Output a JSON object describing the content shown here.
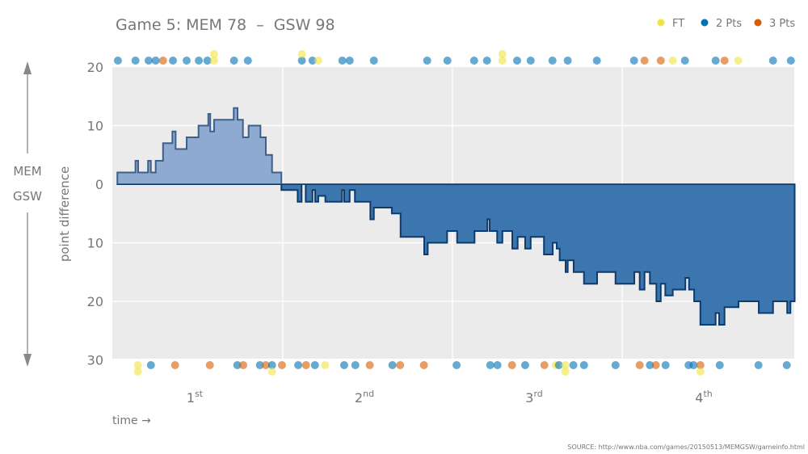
{
  "chart_data": {
    "type": "area",
    "title": "Game 5: MEM 78  –  GSW 98",
    "xlabel": "time →",
    "ylabel": "point difference",
    "team_up": "MEM",
    "team_down": "GSW",
    "y_ticks": [
      {
        "value": 20,
        "label": "20"
      },
      {
        "value": 10,
        "label": "10"
      },
      {
        "value": 0,
        "label": "0"
      },
      {
        "value": -10,
        "label": "10"
      },
      {
        "value": -20,
        "label": "20"
      },
      {
        "value": -30,
        "label": "30"
      }
    ],
    "ylim": [
      -30,
      20
    ],
    "xlim_minutes": [
      0,
      48.2
    ],
    "quarters": [
      {
        "num": "1",
        "suffix": "st",
        "mid": 6
      },
      {
        "num": "2",
        "suffix": "nd",
        "mid": 18
      },
      {
        "num": "3",
        "suffix": "rd",
        "mid": 30
      },
      {
        "num": "4",
        "suffix": "th",
        "mid": 42
      }
    ],
    "grid": true,
    "legend_position": "top-right",
    "legend": [
      {
        "key": "FT",
        "label": "FT",
        "color": "#f0e442"
      },
      {
        "key": "2",
        "label": "2 Pts",
        "color": "#0072b2"
      },
      {
        "key": "3",
        "label": "3 Pts",
        "color": "#d55e00"
      }
    ],
    "colors": {
      "mem_fill": "#8eaad0",
      "mem_stroke": "#3d5f8a",
      "gsw_fill": "#3b76ae",
      "gsw_stroke": "#0d3b6e",
      "plot_bg": "#ebebeb"
    },
    "margin_steps": [
      [
        0.3,
        2
      ],
      [
        1.58,
        4
      ],
      [
        1.77,
        2
      ],
      [
        2.47,
        4
      ],
      [
        2.67,
        2
      ],
      [
        3.01,
        4
      ],
      [
        3.53,
        7
      ],
      [
        4.19,
        9
      ],
      [
        4.42,
        6
      ],
      [
        5.2,
        8
      ],
      [
        6.04,
        10
      ],
      [
        6.73,
        12
      ],
      [
        6.87,
        9
      ],
      [
        7.14,
        11
      ],
      [
        8.53,
        13
      ],
      [
        8.8,
        11
      ],
      [
        9.18,
        8
      ],
      [
        9.58,
        10
      ],
      [
        10.42,
        8
      ],
      [
        10.8,
        5
      ],
      [
        11.24,
        2
      ],
      [
        11.9,
        -1
      ],
      [
        13.05,
        -3
      ],
      [
        13.33,
        0
      ],
      [
        13.62,
        -3
      ],
      [
        14.1,
        -1
      ],
      [
        14.29,
        -3
      ],
      [
        14.51,
        -2
      ],
      [
        15.01,
        -3
      ],
      [
        16.19,
        -1
      ],
      [
        16.34,
        -3
      ],
      [
        16.73,
        -1
      ],
      [
        17.1,
        -3
      ],
      [
        18.19,
        -6
      ],
      [
        18.44,
        -4
      ],
      [
        19.71,
        -5
      ],
      [
        20.33,
        -9
      ],
      [
        22.0,
        -12
      ],
      [
        22.25,
        -10
      ],
      [
        23.62,
        -8
      ],
      [
        24.33,
        -10
      ],
      [
        25.56,
        -8
      ],
      [
        26.47,
        -6
      ],
      [
        26.63,
        -8
      ],
      [
        27.16,
        -10
      ],
      [
        27.53,
        -8
      ],
      [
        28.23,
        -11
      ],
      [
        28.61,
        -9
      ],
      [
        29.14,
        -11
      ],
      [
        29.53,
        -9
      ],
      [
        30.47,
        -12
      ],
      [
        31.09,
        -10
      ],
      [
        31.37,
        -11
      ],
      [
        31.58,
        -13
      ],
      [
        32.0,
        -15
      ],
      [
        32.15,
        -13
      ],
      [
        32.57,
        -15
      ],
      [
        33.3,
        -17
      ],
      [
        34.23,
        -15
      ],
      [
        35.53,
        -17
      ],
      [
        36.86,
        -15
      ],
      [
        37.24,
        -18
      ],
      [
        37.58,
        -15
      ],
      [
        37.96,
        -17
      ],
      [
        38.42,
        -20
      ],
      [
        38.73,
        -17
      ],
      [
        39.05,
        -19
      ],
      [
        39.58,
        -18
      ],
      [
        40.47,
        -16
      ],
      [
        40.73,
        -18
      ],
      [
        41.09,
        -20
      ],
      [
        41.53,
        -24
      ],
      [
        42.61,
        -22
      ],
      [
        42.86,
        -24
      ],
      [
        43.24,
        -21
      ],
      [
        44.23,
        -20
      ],
      [
        45.66,
        -22
      ],
      [
        46.67,
        -20
      ],
      [
        47.67,
        -22
      ],
      [
        47.9,
        -20
      ],
      [
        48.2,
        -20
      ]
    ],
    "mem_scores": [
      [
        0.34,
        "2"
      ],
      [
        1.58,
        "2"
      ],
      [
        2.51,
        "2"
      ],
      [
        3.01,
        "2"
      ],
      [
        3.53,
        "3"
      ],
      [
        4.23,
        "2"
      ],
      [
        5.2,
        "2"
      ],
      [
        6.06,
        "2"
      ],
      [
        6.67,
        "2"
      ],
      [
        7.14,
        "FT"
      ],
      [
        7.14,
        "FT"
      ],
      [
        8.55,
        "2"
      ],
      [
        9.53,
        "2"
      ],
      [
        13.35,
        "2"
      ],
      [
        13.35,
        "FT"
      ],
      [
        14.1,
        "2"
      ],
      [
        14.51,
        "FT"
      ],
      [
        16.21,
        "2"
      ],
      [
        16.73,
        "2"
      ],
      [
        18.44,
        "2"
      ],
      [
        22.21,
        "2"
      ],
      [
        23.64,
        "2"
      ],
      [
        25.53,
        "2"
      ],
      [
        26.44,
        "2"
      ],
      [
        27.53,
        "FT"
      ],
      [
        27.53,
        "FT"
      ],
      [
        28.57,
        "2"
      ],
      [
        29.53,
        "2"
      ],
      [
        31.07,
        "2"
      ],
      [
        32.15,
        "2"
      ],
      [
        34.21,
        "2"
      ],
      [
        36.84,
        "2"
      ],
      [
        37.58,
        "3"
      ],
      [
        38.73,
        "3"
      ],
      [
        39.58,
        "FT"
      ],
      [
        40.44,
        "2"
      ],
      [
        42.61,
        "2"
      ],
      [
        43.24,
        "3"
      ],
      [
        44.21,
        "FT"
      ],
      [
        46.67,
        "2"
      ],
      [
        47.93,
        "2"
      ]
    ],
    "gsw_scores": [
      [
        1.75,
        "FT"
      ],
      [
        1.75,
        "FT"
      ],
      [
        2.67,
        "2"
      ],
      [
        4.38,
        "3"
      ],
      [
        6.84,
        "3"
      ],
      [
        8.78,
        "2"
      ],
      [
        9.2,
        "3"
      ],
      [
        10.38,
        "2"
      ],
      [
        10.8,
        "3"
      ],
      [
        11.24,
        "2"
      ],
      [
        11.24,
        "FT"
      ],
      [
        11.94,
        "3"
      ],
      [
        13.09,
        "2"
      ],
      [
        13.64,
        "3"
      ],
      [
        14.27,
        "2"
      ],
      [
        14.99,
        "FT"
      ],
      [
        16.34,
        "2"
      ],
      [
        17.13,
        "2"
      ],
      [
        18.15,
        "3"
      ],
      [
        19.75,
        "2"
      ],
      [
        20.3,
        "3"
      ],
      [
        21.98,
        "3"
      ],
      [
        24.29,
        "2"
      ],
      [
        26.67,
        "2"
      ],
      [
        27.18,
        "2"
      ],
      [
        28.21,
        "3"
      ],
      [
        29.14,
        "2"
      ],
      [
        30.5,
        "3"
      ],
      [
        31.3,
        "FT"
      ],
      [
        31.53,
        "2"
      ],
      [
        31.98,
        "FT"
      ],
      [
        31.98,
        "FT"
      ],
      [
        32.55,
        "2"
      ],
      [
        33.3,
        "2"
      ],
      [
        35.53,
        "2"
      ],
      [
        37.24,
        "3"
      ],
      [
        37.96,
        "2"
      ],
      [
        38.38,
        "3"
      ],
      [
        39.07,
        "2"
      ],
      [
        40.7,
        "2"
      ],
      [
        41.05,
        "2"
      ],
      [
        41.53,
        "3"
      ],
      [
        41.53,
        "FT"
      ],
      [
        42.9,
        "2"
      ],
      [
        45.64,
        "2"
      ],
      [
        47.64,
        "2"
      ]
    ]
  },
  "source": "SOURCE: http://www.nba.com/games/20150513/MEMGSW/gameinfo.html"
}
